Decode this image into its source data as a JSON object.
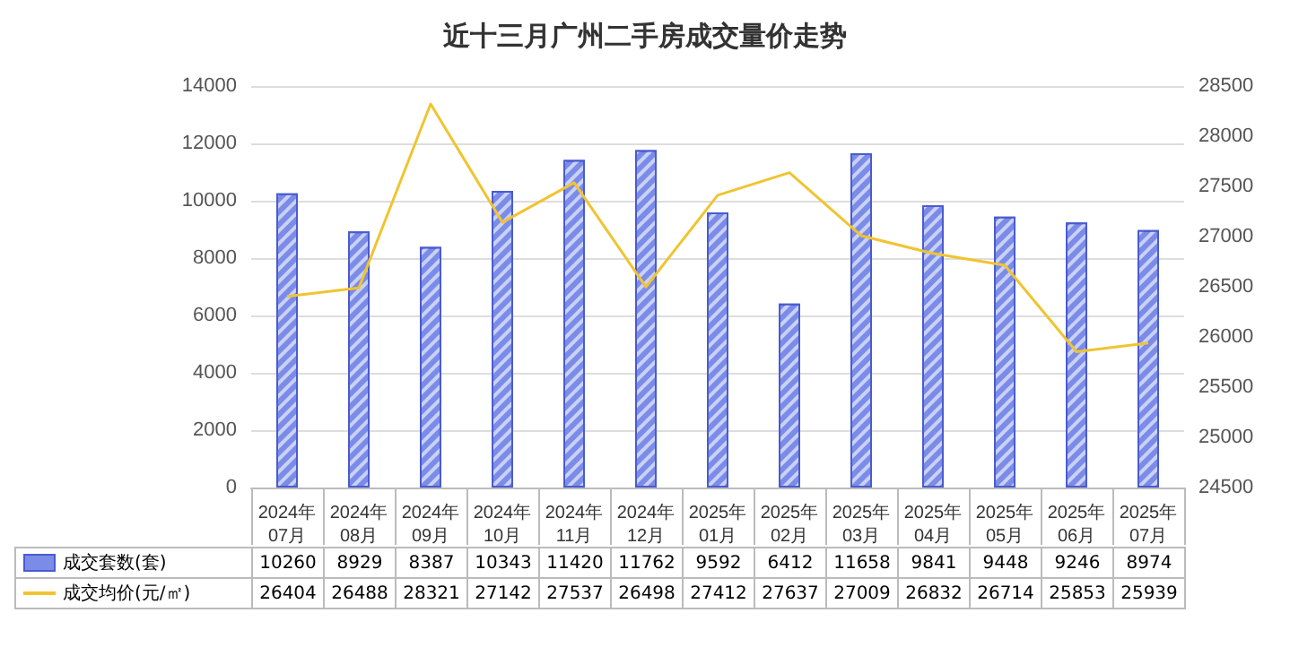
{
  "chart_data": {
    "type": "bar",
    "title": "近十三月广州二手房成交量价走势",
    "categories": [
      "2024年07月",
      "2024年08月",
      "2024年09月",
      "2024年10月",
      "2024年11月",
      "2024年12月",
      "2025年01月",
      "2025年02月",
      "2025年03月",
      "2025年04月",
      "2025年05月",
      "2025年06月",
      "2025年07月"
    ],
    "series": [
      {
        "name": "成交套数(套)",
        "color": "#7b8ce8",
        "values": [
          10260,
          8929,
          8387,
          10343,
          11420,
          11762,
          9592,
          6412,
          11658,
          9841,
          9448,
          9246,
          8974
        ]
      },
      {
        "name": "成交均价(元/㎡)",
        "type": "line",
        "axis": "y2",
        "color": "#f0c430",
        "values": [
          26404,
          26488,
          28321,
          27142,
          27537,
          26498,
          27412,
          27637,
          27009,
          26832,
          26714,
          25853,
          25939
        ]
      }
    ],
    "ylim": [
      0,
      14000
    ],
    "yticks": [
      0,
      2000,
      4000,
      6000,
      8000,
      10000,
      12000,
      14000
    ],
    "y2lim": [
      24500,
      28500
    ],
    "y2ticks": [
      24500,
      25000,
      25500,
      26000,
      26500,
      27000,
      27500,
      28000,
      28500
    ],
    "grid": "y",
    "legend": "bottom",
    "data_labels": true,
    "marker": "none"
  }
}
